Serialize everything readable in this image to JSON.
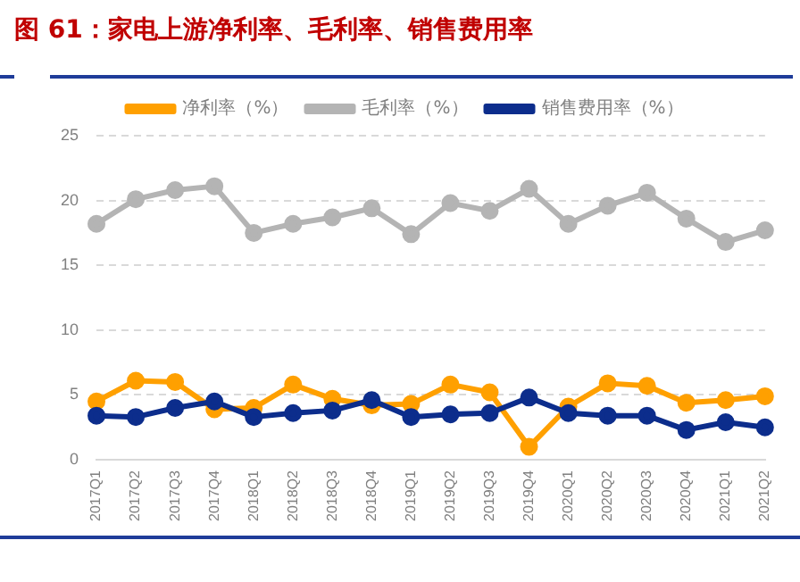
{
  "chart_data": {
    "type": "line",
    "title": "图 61：家电上游净利率、毛利率、销售费用率",
    "categories": [
      "2017Q1",
      "2017Q2",
      "2017Q3",
      "2017Q4",
      "2018Q1",
      "2018Q2",
      "2018Q3",
      "2018Q4",
      "2019Q1",
      "2019Q2",
      "2019Q3",
      "2019Q4",
      "2020Q1",
      "2020Q2",
      "2020Q3",
      "2020Q4",
      "2021Q1",
      "2021Q2"
    ],
    "series": [
      {
        "name": "净利率（%）",
        "color": "#ffa000",
        "values": [
          4.5,
          6.1,
          6.0,
          3.9,
          4.0,
          5.8,
          4.7,
          4.2,
          4.3,
          5.8,
          5.2,
          1.0,
          4.1,
          5.9,
          5.7,
          4.4,
          4.6,
          4.9
        ]
      },
      {
        "name": "毛利率（%）",
        "color": "#b4b4b4",
        "values": [
          18.2,
          20.1,
          20.8,
          21.1,
          17.5,
          18.2,
          18.7,
          19.4,
          17.4,
          19.8,
          19.2,
          20.9,
          18.2,
          19.6,
          20.6,
          18.6,
          16.8,
          17.7
        ]
      },
      {
        "name": "销售费用率（%）",
        "color": "#0c2d8c",
        "values": [
          3.4,
          3.3,
          4.0,
          4.5,
          3.3,
          3.6,
          3.8,
          4.6,
          3.3,
          3.5,
          3.6,
          4.8,
          3.6,
          3.4,
          3.4,
          2.3,
          2.9,
          2.5
        ]
      }
    ],
    "ylim": [
      0,
      25
    ],
    "yticks": [
      0,
      5,
      10,
      15,
      20,
      25
    ],
    "grid": "y",
    "legend": "top",
    "marker": "circle",
    "line_style": "solid"
  }
}
